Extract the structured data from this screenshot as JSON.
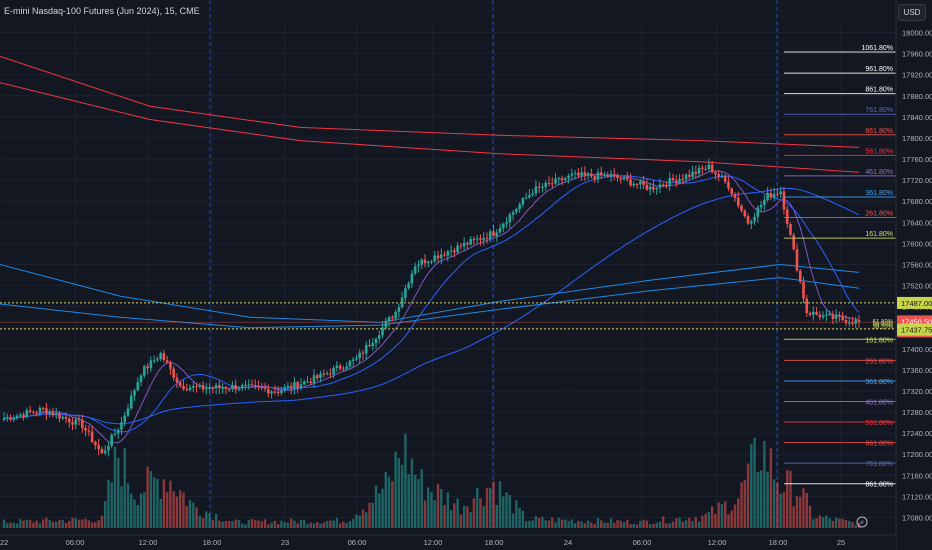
{
  "header": {
    "title": "E-mini Nasdaq-100 Futures (Jun 2024), 15, CME",
    "currency": "USD"
  },
  "colors": {
    "background": "#131722",
    "grid": "#1e2230",
    "up": "#26a69a",
    "down": "#ef5350",
    "text": "#b2b5be",
    "ma_red": "#f23645",
    "ma_blue": "#2962ff",
    "session_divider": "#2962ff",
    "dotted_level": "#d4d45a"
  },
  "chart_data": {
    "type": "candlestick",
    "symbol": "E-mini Nasdaq-100 Futures (Jun 2024)",
    "interval": "15",
    "exchange": "CME",
    "ylim": [
      17060,
      18020
    ],
    "y_ticks": [
      18000,
      17960,
      17920,
      17880,
      17840,
      17800,
      17760,
      17720,
      17680,
      17640,
      17600,
      17560,
      17520,
      17480,
      17440,
      17400,
      17360,
      17320,
      17280,
      17240,
      17200,
      17160,
      17120,
      17080
    ],
    "y_tick_labels": [
      "18000.00",
      "17960.00",
      "17920.00",
      "17880.00",
      "17840.00",
      "17800.00",
      "17760.00",
      "17720.00",
      "17680.00",
      "17640.00",
      "17600.00",
      "17560.00",
      "17520.00",
      "17480.00",
      "17440.00",
      "17400.00",
      "17360.00",
      "17320.00",
      "17280.00",
      "17240.00",
      "17200.00",
      "17160.00",
      "17120.00",
      "17080.00"
    ],
    "x_ticks": [
      "22",
      "06:00",
      "12:00",
      "18:00",
      "23",
      "06:00",
      "12:00",
      "18:00",
      "24",
      "06:00",
      "12:00",
      "18:00",
      "25"
    ],
    "session_dividers": [
      "18:00",
      "18:00",
      "18:00"
    ],
    "price_labels": {
      "level_upper": {
        "value": 17487.0,
        "label": "17487.00"
      },
      "last_price": {
        "value": 17450.5,
        "label": "17450.50"
      },
      "countdown": "52:07",
      "level_lower": {
        "value": 17437.75,
        "label": "17437.75"
      }
    },
    "fib_levels_upper": [
      {
        "label": "1061.80%",
        "value": 17963
      },
      {
        "label": "961.80%",
        "value": 17923
      },
      {
        "label": "861.80%",
        "value": 17884
      },
      {
        "label": "761.80%",
        "value": 17845
      },
      {
        "label": "661.80%",
        "value": 17806
      },
      {
        "label": "561.80%",
        "value": 17767
      },
      {
        "label": "461.80%",
        "value": 17728
      },
      {
        "label": "361.80%",
        "value": 17688
      },
      {
        "label": "261.80%",
        "value": 17649
      },
      {
        "label": "161.80%",
        "value": 17610
      }
    ],
    "fib_levels_mid": [
      {
        "label": "61.80%",
        "value": 17452
      },
      {
        "label": "50.00%",
        "value": 17447
      },
      {
        "label": "38.20%",
        "value": 17442
      }
    ],
    "fib_levels_lower": [
      {
        "label": "161.80%",
        "value": 17418
      },
      {
        "label": "261.80%",
        "value": 17378
      },
      {
        "label": "361.80%",
        "value": 17339
      },
      {
        "label": "461.80%",
        "value": 17300
      },
      {
        "label": "561.80%",
        "value": 17261
      },
      {
        "label": "661.80%",
        "value": 17222
      },
      {
        "label": "761.80%",
        "value": 17183
      },
      {
        "label": "861.80%",
        "value": 17144
      }
    ],
    "ohlc_anchors": [
      {
        "i": 0,
        "c": 17268
      },
      {
        "i": 12,
        "c": 17285
      },
      {
        "i": 24,
        "c": 17255
      },
      {
        "i": 30,
        "c": 17200
      },
      {
        "i": 36,
        "c": 17260
      },
      {
        "i": 42,
        "c": 17355
      },
      {
        "i": 48,
        "c": 17390
      },
      {
        "i": 54,
        "c": 17330
      },
      {
        "i": 60,
        "c": 17325
      },
      {
        "i": 72,
        "c": 17328
      },
      {
        "i": 84,
        "c": 17320
      },
      {
        "i": 96,
        "c": 17345
      },
      {
        "i": 108,
        "c": 17380
      },
      {
        "i": 120,
        "c": 17470
      },
      {
        "i": 126,
        "c": 17560
      },
      {
        "i": 138,
        "c": 17590
      },
      {
        "i": 150,
        "c": 17620
      },
      {
        "i": 162,
        "c": 17700
      },
      {
        "i": 174,
        "c": 17728
      },
      {
        "i": 186,
        "c": 17728
      },
      {
        "i": 198,
        "c": 17705
      },
      {
        "i": 210,
        "c": 17730
      },
      {
        "i": 216,
        "c": 17745
      },
      {
        "i": 222,
        "c": 17710
      },
      {
        "i": 228,
        "c": 17640
      },
      {
        "i": 234,
        "c": 17690
      },
      {
        "i": 238,
        "c": 17700
      },
      {
        "i": 243,
        "c": 17555
      },
      {
        "i": 246,
        "c": 17470
      },
      {
        "i": 252,
        "c": 17460
      },
      {
        "i": 258,
        "c": 17455
      },
      {
        "i": 262,
        "c": 17450
      }
    ],
    "volume_anchors": [
      {
        "i": 0,
        "v": 0.04
      },
      {
        "i": 30,
        "v": 0.06
      },
      {
        "i": 35,
        "v": 0.5
      },
      {
        "i": 40,
        "v": 0.25
      },
      {
        "i": 50,
        "v": 0.35
      },
      {
        "i": 58,
        "v": 0.15
      },
      {
        "i": 70,
        "v": 0.04
      },
      {
        "i": 105,
        "v": 0.05
      },
      {
        "i": 118,
        "v": 0.3
      },
      {
        "i": 122,
        "v": 0.55
      },
      {
        "i": 128,
        "v": 0.3
      },
      {
        "i": 140,
        "v": 0.15
      },
      {
        "i": 150,
        "v": 0.3
      },
      {
        "i": 160,
        "v": 0.06
      },
      {
        "i": 195,
        "v": 0.04
      },
      {
        "i": 215,
        "v": 0.08
      },
      {
        "i": 225,
        "v": 0.2
      },
      {
        "i": 232,
        "v": 0.55
      },
      {
        "i": 238,
        "v": 0.3
      },
      {
        "i": 244,
        "v": 0.25
      },
      {
        "i": 248,
        "v": 0.08
      },
      {
        "i": 262,
        "v": 0.03
      }
    ]
  }
}
